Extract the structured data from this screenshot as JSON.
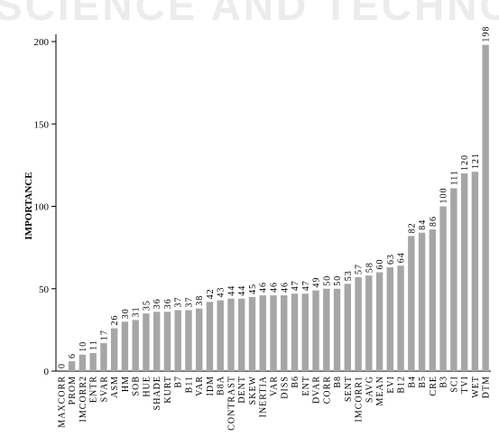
{
  "watermark": "SCIENCE AND TECHNOLOGY",
  "chart_data": {
    "type": "bar",
    "ylabel": "IMPORTANCE",
    "xlabel": "",
    "ylim": [
      0,
      200
    ],
    "yticks": [
      0,
      50,
      100,
      150,
      200
    ],
    "bar_color": "#a6a6a6",
    "categories": [
      "MAXCORR",
      "PROM",
      "IMCORR2",
      "ENTR",
      "SVAR",
      "ASM",
      "HM",
      "SOB",
      "HUE",
      "SHADE",
      "KURT",
      "B7",
      "B11",
      "VAR",
      "IDM",
      "B8A",
      "CONTRAST",
      "DENT",
      "SKEW",
      "INERTIA",
      "VAR",
      "DISS",
      "B6",
      "ENT",
      "DVAR",
      "CORR",
      "B8",
      "SENT",
      "IMCORR1",
      "SAVG",
      "MEAN",
      "EVI",
      "B12",
      "B4",
      "B5",
      "CRE",
      "B3",
      "SCI",
      "TVI",
      "WET",
      "DTM"
    ],
    "values": [
      0,
      6,
      10,
      11,
      17,
      26,
      30,
      31,
      35,
      36,
      36,
      37,
      37,
      38,
      42,
      43,
      44,
      44,
      45,
      46,
      46,
      46,
      47,
      47,
      49,
      50,
      50,
      53,
      57,
      58,
      60,
      63,
      64,
      82,
      84,
      86,
      100,
      111,
      120,
      121,
      198
    ]
  }
}
